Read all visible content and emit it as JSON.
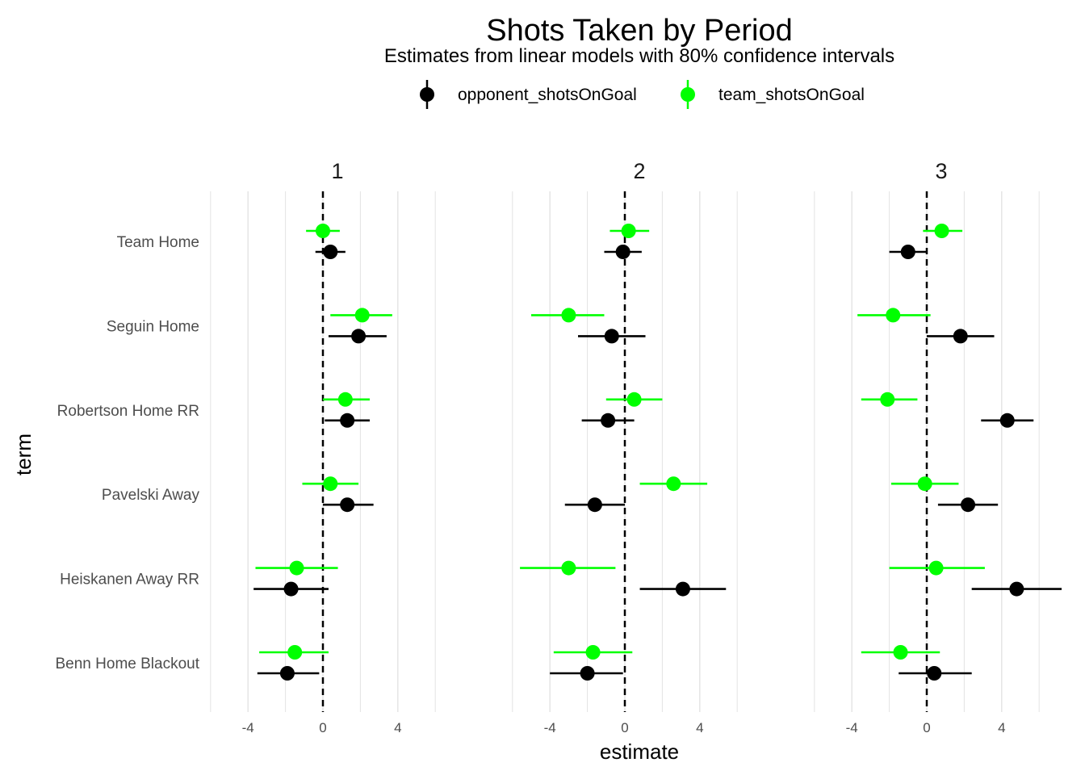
{
  "chart_data": {
    "type": "scatter",
    "title": "Shots Taken by Period",
    "subtitle": "Estimates from linear models with 80% confidence intervals",
    "xlabel": "estimate",
    "ylabel": "term",
    "legend_position": "top",
    "grid": true,
    "reference_line": 0,
    "xlim": [
      -6,
      6
    ],
    "x_ticks": [
      "-4",
      "0",
      "4"
    ],
    "x_tick_values": [
      -4,
      0,
      4
    ],
    "terms": [
      "Team Home",
      "Seguin Home",
      "Robertson Home RR",
      "Pavelski Away",
      "Heiskanen Away RR",
      "Benn Home Blackout"
    ],
    "series": [
      {
        "name": "opponent_shotsOnGoal",
        "color": "#000000"
      },
      {
        "name": "team_shotsOnGoal",
        "color": "#00ff00"
      }
    ],
    "facets": [
      {
        "label": "1",
        "opponent_shotsOnGoal": [
          {
            "term": "Team Home",
            "estimate": 0.4,
            "low": -0.4,
            "high": 1.2
          },
          {
            "term": "Seguin Home",
            "estimate": 1.9,
            "low": 0.3,
            "high": 3.4
          },
          {
            "term": "Robertson Home RR",
            "estimate": 1.3,
            "low": 0.1,
            "high": 2.5
          },
          {
            "term": "Pavelski Away",
            "estimate": 1.3,
            "low": 0.0,
            "high": 2.7
          },
          {
            "term": "Heiskanen Away RR",
            "estimate": -1.7,
            "low": -3.7,
            "high": 0.3
          },
          {
            "term": "Benn Home Blackout",
            "estimate": -1.9,
            "low": -3.5,
            "high": -0.2
          }
        ],
        "team_shotsOnGoal": [
          {
            "term": "Team Home",
            "estimate": 0.0,
            "low": -0.9,
            "high": 0.9
          },
          {
            "term": "Seguin Home",
            "estimate": 2.1,
            "low": 0.4,
            "high": 3.7
          },
          {
            "term": "Robertson Home RR",
            "estimate": 1.2,
            "low": 0.0,
            "high": 2.5
          },
          {
            "term": "Pavelski Away",
            "estimate": 0.4,
            "low": -1.1,
            "high": 1.9
          },
          {
            "term": "Heiskanen Away RR",
            "estimate": -1.4,
            "low": -3.6,
            "high": 0.8
          },
          {
            "term": "Benn Home Blackout",
            "estimate": -1.5,
            "low": -3.4,
            "high": 0.3
          }
        ]
      },
      {
        "label": "2",
        "opponent_shotsOnGoal": [
          {
            "term": "Team Home",
            "estimate": -0.1,
            "low": -1.1,
            "high": 0.9
          },
          {
            "term": "Seguin Home",
            "estimate": -0.7,
            "low": -2.5,
            "high": 1.1
          },
          {
            "term": "Robertson Home RR",
            "estimate": -0.9,
            "low": -2.3,
            "high": 0.5
          },
          {
            "term": "Pavelski Away",
            "estimate": -1.6,
            "low": -3.2,
            "high": 0.0
          },
          {
            "term": "Heiskanen Away RR",
            "estimate": 3.1,
            "low": 0.8,
            "high": 5.4
          },
          {
            "term": "Benn Home Blackout",
            "estimate": -2.0,
            "low": -4.0,
            "high": -0.1
          }
        ],
        "team_shotsOnGoal": [
          {
            "term": "Team Home",
            "estimate": 0.2,
            "low": -0.8,
            "high": 1.3
          },
          {
            "term": "Seguin Home",
            "estimate": -3.0,
            "low": -5.0,
            "high": -1.1
          },
          {
            "term": "Robertson Home RR",
            "estimate": 0.5,
            "low": -1.0,
            "high": 2.0
          },
          {
            "term": "Pavelski Away",
            "estimate": 2.6,
            "low": 0.8,
            "high": 4.4
          },
          {
            "term": "Heiskanen Away RR",
            "estimate": -3.0,
            "low": -5.6,
            "high": -0.5
          },
          {
            "term": "Benn Home Blackout",
            "estimate": -1.7,
            "low": -3.8,
            "high": 0.4
          }
        ]
      },
      {
        "label": "3",
        "opponent_shotsOnGoal": [
          {
            "term": "Team Home",
            "estimate": -1.0,
            "low": -2.0,
            "high": 0.0
          },
          {
            "term": "Seguin Home",
            "estimate": 1.8,
            "low": 0.0,
            "high": 3.6
          },
          {
            "term": "Robertson Home RR",
            "estimate": 4.3,
            "low": 2.9,
            "high": 5.7
          },
          {
            "term": "Pavelski Away",
            "estimate": 2.2,
            "low": 0.6,
            "high": 3.8
          },
          {
            "term": "Heiskanen Away RR",
            "estimate": 4.8,
            "low": 2.4,
            "high": 7.2
          },
          {
            "term": "Benn Home Blackout",
            "estimate": 0.4,
            "low": -1.5,
            "high": 2.4
          }
        ],
        "team_shotsOnGoal": [
          {
            "term": "Team Home",
            "estimate": 0.8,
            "low": -0.2,
            "high": 1.9
          },
          {
            "term": "Seguin Home",
            "estimate": -1.8,
            "low": -3.7,
            "high": 0.2
          },
          {
            "term": "Robertson Home RR",
            "estimate": -2.1,
            "low": -3.5,
            "high": -0.5
          },
          {
            "term": "Pavelski Away",
            "estimate": -0.1,
            "low": -1.9,
            "high": 1.7
          },
          {
            "term": "Heiskanen Away RR",
            "estimate": 0.5,
            "low": -2.0,
            "high": 3.1
          },
          {
            "term": "Benn Home Blackout",
            "estimate": -1.4,
            "low": -3.5,
            "high": 0.7
          }
        ]
      }
    ]
  }
}
